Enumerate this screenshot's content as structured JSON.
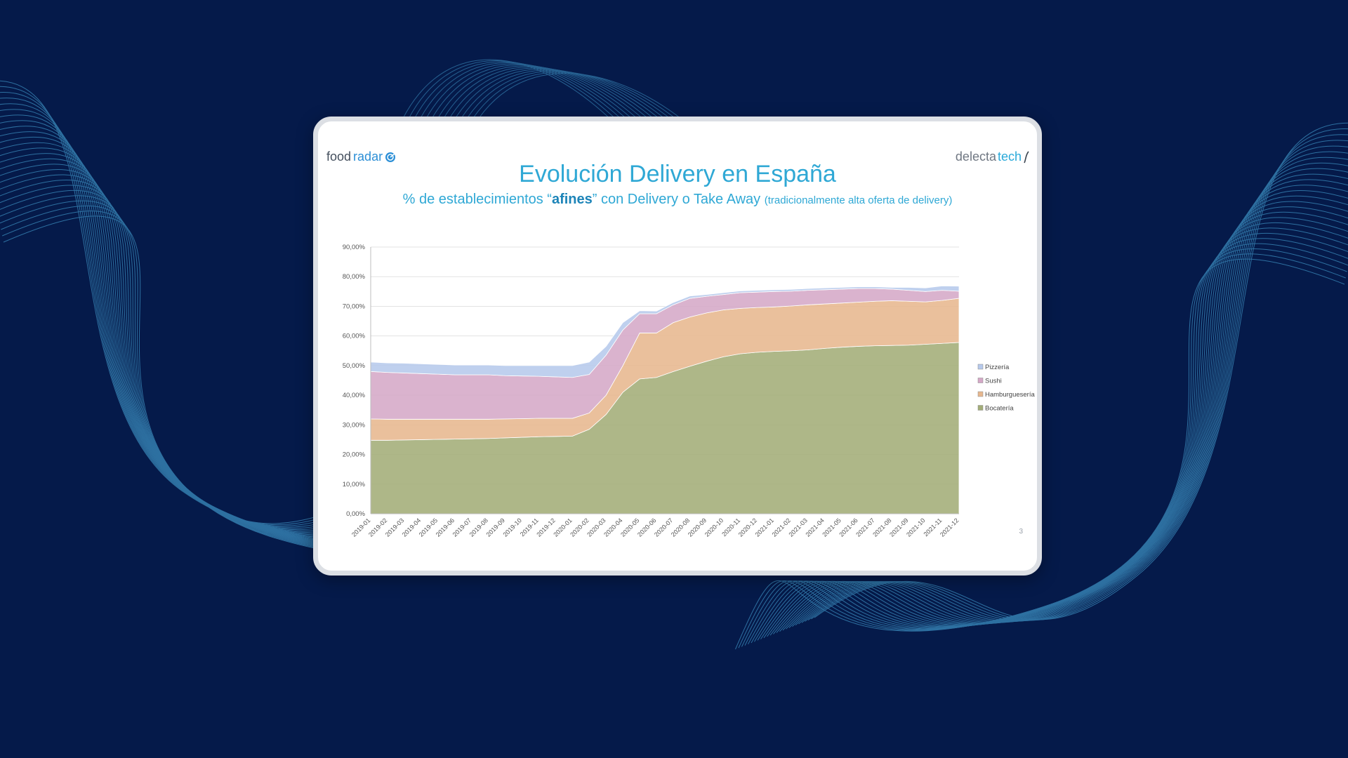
{
  "slide": {
    "logo_left": {
      "text_main": "food",
      "text_accent": "radar"
    },
    "logo_right": {
      "text_main": "delecta",
      "text_accent": "tech"
    },
    "title": "Evolución Delivery en España",
    "subtitle": {
      "prefix": "% de establecimientos “",
      "emphasis": "afines",
      "middle": "” con Delivery o Take Away",
      "note": "(tradicionalmente alta oferta de delivery)"
    },
    "page_number": "3"
  },
  "chart_data": {
    "type": "area",
    "stacked": true,
    "categories": [
      "2019-01",
      "2019-02",
      "2019-03",
      "2019-04",
      "2019-05",
      "2019-06",
      "2019-07",
      "2019-08",
      "2019-09",
      "2019-10",
      "2019-11",
      "2019-12",
      "2020-01",
      "2020-02",
      "2020-03",
      "2020-04",
      "2020-05",
      "2020-06",
      "2020-07",
      "2020-08",
      "2020-09",
      "2020-10",
      "2020-11",
      "2020-12",
      "2021-01",
      "2021-02",
      "2021-03",
      "2021-04",
      "2021-05",
      "2021-06",
      "2021-07",
      "2021-08",
      "2021-09",
      "2021-10",
      "2021-11",
      "2021-12"
    ],
    "y_ticks": [
      "0,00%",
      "10,00%",
      "20,00%",
      "30,00%",
      "40,00%",
      "50,00%",
      "60,00%",
      "70,00%",
      "80,00%",
      "90,00%"
    ],
    "ylim": [
      0,
      90
    ],
    "legend_position": "right",
    "grid": true,
    "series": [
      {
        "name": "Bocatería",
        "color": "#a3ad78",
        "values": [
          24.8,
          24.8,
          24.9,
          25.0,
          25.1,
          25.2,
          25.3,
          25.4,
          25.6,
          25.8,
          26.0,
          26.1,
          26.2,
          28.5,
          33.5,
          41.0,
          45.5,
          46.0,
          48.0,
          49.8,
          51.5,
          53.0,
          54.0,
          54.5,
          54.8,
          55.0,
          55.3,
          55.8,
          56.2,
          56.5,
          56.7,
          56.8,
          56.9,
          57.2,
          57.5,
          57.8
        ]
      },
      {
        "name": "Hamburguesería",
        "color": "#e7b78e",
        "values": [
          7.2,
          7.1,
          7.0,
          6.9,
          6.8,
          6.7,
          6.6,
          6.5,
          6.4,
          6.3,
          6.2,
          6.1,
          6.0,
          5.5,
          6.5,
          9.0,
          15.5,
          15.0,
          16.5,
          16.6,
          16.3,
          15.8,
          15.3,
          15.1,
          15.0,
          15.1,
          15.2,
          15.0,
          14.9,
          14.9,
          15.0,
          15.1,
          14.8,
          14.3,
          14.5,
          14.9
        ]
      },
      {
        "name": "Sushi",
        "color": "#d5a8c7",
        "values": [
          16.0,
          15.8,
          15.6,
          15.4,
          15.2,
          15.0,
          15.0,
          15.0,
          14.6,
          14.4,
          14.2,
          14.0,
          13.8,
          13.0,
          13.5,
          12.0,
          6.5,
          6.5,
          6.0,
          6.3,
          5.6,
          5.2,
          5.3,
          5.2,
          5.2,
          5.0,
          4.9,
          4.8,
          4.7,
          4.6,
          4.3,
          3.9,
          3.7,
          3.5,
          3.4,
          2.4
        ]
      },
      {
        "name": "Pizzería",
        "color": "#b6c9ec",
        "values": [
          3.2,
          3.2,
          3.3,
          3.3,
          3.3,
          3.3,
          3.3,
          3.3,
          3.4,
          3.5,
          3.6,
          3.8,
          4.0,
          4.2,
          3.0,
          2.5,
          1.0,
          0.9,
          0.8,
          0.8,
          0.6,
          0.6,
          0.6,
          0.6,
          0.6,
          0.6,
          0.6,
          0.6,
          0.6,
          0.6,
          0.6,
          0.6,
          1.0,
          1.2,
          1.5,
          1.7
        ]
      }
    ]
  }
}
